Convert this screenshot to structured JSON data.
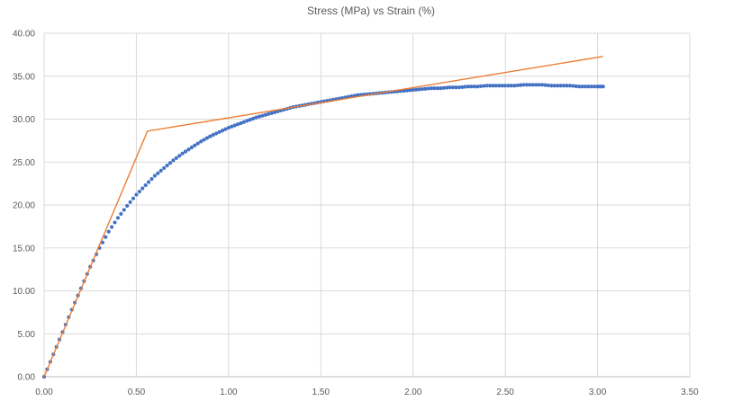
{
  "chart_data": {
    "type": "scatter",
    "title": "Stress (MPa) vs Strain (%)",
    "xlabel": "",
    "ylabel": "",
    "xlim": [
      0,
      3.5
    ],
    "ylim": [
      0,
      40
    ],
    "x_ticks": [
      "0.00",
      "0.50",
      "1.00",
      "1.50",
      "2.00",
      "2.50",
      "3.00",
      "3.50"
    ],
    "y_ticks": [
      "0.00",
      "5.00",
      "10.00",
      "15.00",
      "20.00",
      "25.00",
      "30.00",
      "35.00",
      "40.00"
    ],
    "grid": true,
    "legend": "none",
    "colors": {
      "measured": "#4472c4",
      "fit": "#ed7d31",
      "grid": "#d9d9d9",
      "axis": "#bfbfbf",
      "text": "#595959"
    },
    "series": [
      {
        "style": "markers",
        "x": [
          0.0,
          0.05,
          0.1,
          0.15,
          0.2,
          0.25,
          0.3,
          0.35,
          0.4,
          0.45,
          0.5,
          0.55,
          0.6,
          0.65,
          0.7,
          0.75,
          0.8,
          0.85,
          0.9,
          0.95,
          1.0,
          1.05,
          1.1,
          1.15,
          1.2,
          1.25,
          1.3,
          1.35,
          1.4,
          1.45,
          1.5,
          1.55,
          1.6,
          1.65,
          1.7,
          1.75,
          1.8,
          1.85,
          1.9,
          1.95,
          2.0,
          2.05,
          2.1,
          2.15,
          2.2,
          2.25,
          2.3,
          2.35,
          2.4,
          2.45,
          2.5,
          2.55,
          2.6,
          2.65,
          2.7,
          2.75,
          2.8,
          2.85,
          2.9,
          2.95,
          3.0,
          3.03
        ],
        "y": [
          0.0,
          2.6,
          5.2,
          7.8,
          10.3,
          12.8,
          15.0,
          16.9,
          18.5,
          19.9,
          21.2,
          22.3,
          23.4,
          24.3,
          25.2,
          26.0,
          26.7,
          27.4,
          28.0,
          28.5,
          29.0,
          29.4,
          29.8,
          30.2,
          30.5,
          30.8,
          31.1,
          31.4,
          31.6,
          31.8,
          32.0,
          32.2,
          32.4,
          32.6,
          32.8,
          32.9,
          33.0,
          33.1,
          33.2,
          33.3,
          33.4,
          33.5,
          33.6,
          33.6,
          33.7,
          33.7,
          33.8,
          33.8,
          33.9,
          33.9,
          33.9,
          33.9,
          34.0,
          34.0,
          34.0,
          33.9,
          33.9,
          33.9,
          33.8,
          33.8,
          33.8,
          33.8
        ]
      },
      {
        "style": "line",
        "x": [
          0.0,
          0.56,
          3.03
        ],
        "y": [
          0.0,
          28.6,
          37.3
        ]
      }
    ]
  }
}
